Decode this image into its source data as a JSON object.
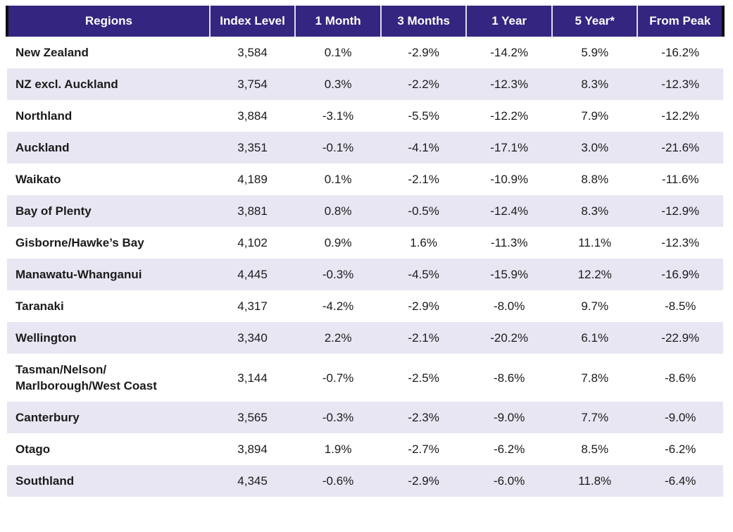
{
  "colors": {
    "header_bg": "#342580",
    "header_text": "#ffffff",
    "row_alt_bg": "#e9e6f3",
    "row_bg": "#ffffff",
    "body_text": "#1b1b1b",
    "edge_bar": "#0d0d0d"
  },
  "table": {
    "columns": [
      {
        "key": "region",
        "label": "Regions"
      },
      {
        "key": "index_level",
        "label": "Index Level"
      },
      {
        "key": "one_month",
        "label": "1 Month"
      },
      {
        "key": "three_months",
        "label": "3 Months"
      },
      {
        "key": "one_year",
        "label": "1 Year"
      },
      {
        "key": "five_year",
        "label": "5 Year*"
      },
      {
        "key": "from_peak",
        "label": "From Peak"
      }
    ],
    "rows": [
      {
        "region": "New Zealand",
        "index_level": "3,584",
        "one_month": "0.1%",
        "three_months": "-2.9%",
        "one_year": "-14.2%",
        "five_year": "5.9%",
        "from_peak": "-16.2%"
      },
      {
        "region": "NZ excl. Auckland",
        "index_level": "3,754",
        "one_month": "0.3%",
        "three_months": "-2.2%",
        "one_year": "-12.3%",
        "five_year": "8.3%",
        "from_peak": "-12.3%"
      },
      {
        "region": "Northland",
        "index_level": "3,884",
        "one_month": "-3.1%",
        "three_months": "-5.5%",
        "one_year": "-12.2%",
        "five_year": "7.9%",
        "from_peak": "-12.2%"
      },
      {
        "region": "Auckland",
        "index_level": "3,351",
        "one_month": "-0.1%",
        "three_months": "-4.1%",
        "one_year": "-17.1%",
        "five_year": "3.0%",
        "from_peak": "-21.6%"
      },
      {
        "region": "Waikato",
        "index_level": "4,189",
        "one_month": "0.1%",
        "three_months": "-2.1%",
        "one_year": "-10.9%",
        "five_year": "8.8%",
        "from_peak": "-11.6%"
      },
      {
        "region": "Bay of Plenty",
        "index_level": "3,881",
        "one_month": "0.8%",
        "three_months": "-0.5%",
        "one_year": "-12.4%",
        "five_year": "8.3%",
        "from_peak": "-12.9%"
      },
      {
        "region": "Gisborne/Hawke’s Bay",
        "index_level": "4,102",
        "one_month": "0.9%",
        "three_months": "1.6%",
        "one_year": "-11.3%",
        "five_year": "11.1%",
        "from_peak": "-12.3%"
      },
      {
        "region": "Manawatu-Whanganui",
        "index_level": "4,445",
        "one_month": "-0.3%",
        "three_months": "-4.5%",
        "one_year": "-15.9%",
        "five_year": "12.2%",
        "from_peak": "-16.9%"
      },
      {
        "region": "Taranaki",
        "index_level": "4,317",
        "one_month": "-4.2%",
        "three_months": "-2.9%",
        "one_year": "-8.0%",
        "five_year": "9.7%",
        "from_peak": "-8.5%"
      },
      {
        "region": "Wellington",
        "index_level": "3,340",
        "one_month": "2.2%",
        "three_months": "-2.1%",
        "one_year": "-20.2%",
        "five_year": "6.1%",
        "from_peak": "-22.9%"
      },
      {
        "region": "Tasman/Nelson/\nMarlborough/West Coast",
        "index_level": "3,144",
        "one_month": "-0.7%",
        "three_months": "-2.5%",
        "one_year": "-8.6%",
        "five_year": "7.8%",
        "from_peak": "-8.6%"
      },
      {
        "region": "Canterbury",
        "index_level": "3,565",
        "one_month": "-0.3%",
        "three_months": "-2.3%",
        "one_year": "-9.0%",
        "five_year": "7.7%",
        "from_peak": "-9.0%"
      },
      {
        "region": "Otago",
        "index_level": "3,894",
        "one_month": "1.9%",
        "three_months": "-2.7%",
        "one_year": "-6.2%",
        "five_year": "8.5%",
        "from_peak": "-6.2%"
      },
      {
        "region": "Southland",
        "index_level": "4,345",
        "one_month": "-0.6%",
        "three_months": "-2.9%",
        "one_year": "-6.0%",
        "five_year": "11.8%",
        "from_peak": "-6.4%"
      }
    ]
  }
}
